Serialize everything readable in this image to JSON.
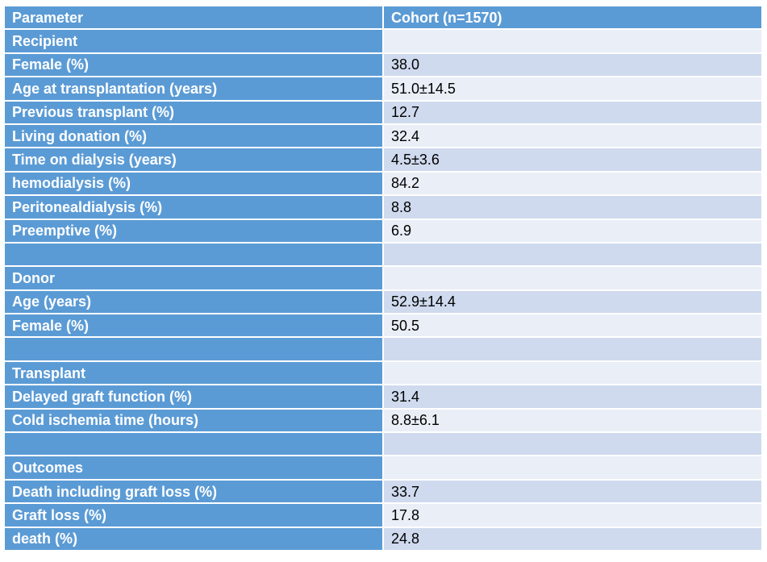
{
  "table": {
    "headers": [
      "Parameter",
      "Cohort (n=1570)"
    ],
    "rows": [
      {
        "label": "Recipient",
        "value": "",
        "indent": false
      },
      {
        "label": "Female (%)",
        "value": "38.0",
        "indent": true
      },
      {
        "label": "Age at transplantation (years)",
        "value": "51.0±14.5",
        "indent": true
      },
      {
        "label": "Previous transplant (%)",
        "value": "12.7",
        "indent": true
      },
      {
        "label": "Living donation (%)",
        "value": "32.4",
        "indent": true
      },
      {
        "label": "Time on dialysis (years)",
        "value": "4.5±3.6",
        "indent": true
      },
      {
        "label": "hemodialysis (%)",
        "value": "84.2",
        "indent": true
      },
      {
        "label": "Peritonealdialysis (%)",
        "value": "8.8",
        "indent": true
      },
      {
        "label": "Preemptive (%)",
        "value": "6.9",
        "indent": true
      },
      {
        "label": "",
        "value": "",
        "indent": false
      },
      {
        "label": "Donor",
        "value": "",
        "indent": false
      },
      {
        "label": "Age (years)",
        "value": "52.9±14.4",
        "indent": true
      },
      {
        "label": "Female (%)",
        "value": "50.5",
        "indent": true
      },
      {
        "label": "",
        "value": "",
        "indent": false
      },
      {
        "label": "Transplant",
        "value": "",
        "indent": false
      },
      {
        "label": "Delayed graft function (%)",
        "value": "31.4",
        "indent": true
      },
      {
        "label": "Cold ischemia time (hours)",
        "value": "8.8±6.1",
        "indent": true
      },
      {
        "label": "",
        "value": "",
        "indent": false
      },
      {
        "label": "Outcomes",
        "value": "",
        "indent": false
      },
      {
        "label": "Death including graft loss (%)",
        "value": "33.7",
        "indent": true
      },
      {
        "label": "Graft loss (%)",
        "value": "17.8",
        "indent": true
      },
      {
        "label": "death (%)",
        "value": "24.8",
        "indent": true
      }
    ]
  },
  "colors": {
    "header": "#5b9bd5",
    "row_light": "#e9eef7",
    "row_dark": "#cfdaee"
  }
}
